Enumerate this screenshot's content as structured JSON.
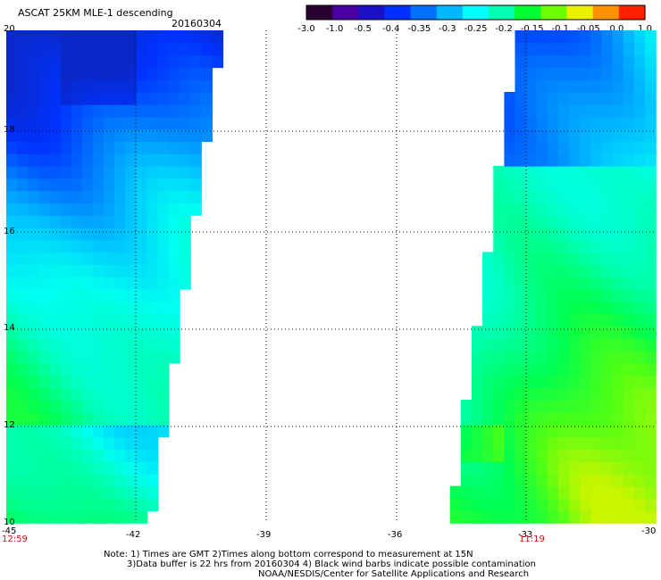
{
  "header": {
    "title": "ASCAT 25KM MLE-1 descending",
    "date": "20160304"
  },
  "colorbar": {
    "tick_labels": [
      "-3.0",
      "-1.0",
      "-0.5",
      "-0.4",
      "-0.35",
      "-0.3",
      "-0.25",
      "-0.2",
      "-0.15",
      "-0.1",
      "-0.05",
      "0.0",
      "1.0"
    ],
    "colors": [
      "#2a0030",
      "#4a00a0",
      "#1a10c8",
      "#0030ff",
      "#0070ff",
      "#00b8ff",
      "#00ffff",
      "#00ffb0",
      "#00ff30",
      "#70ff00",
      "#e8f000",
      "#ff9000",
      "#ff2000"
    ]
  },
  "axes": {
    "x_ticks": [
      "-45",
      "-42",
      "-39",
      "-36",
      "-33",
      "-30"
    ],
    "y_ticks": [
      "20",
      "18",
      "16",
      "14",
      "12",
      "10"
    ],
    "lon_range": [
      -45,
      -30
    ],
    "lat_range": [
      10,
      20
    ]
  },
  "swath_times": {
    "left": "12:59",
    "right": "11:19"
  },
  "notes": [
    "Note: 1) Times are GMT 2)Times along bottom correspond to measurement at 15N",
    "3)Data buffer is 22 hrs from 20160304 4) Black wind barbs indicate possible contamination",
    "NOAA/NESDIS/Center for Satellite Applications and Research"
  ]
}
